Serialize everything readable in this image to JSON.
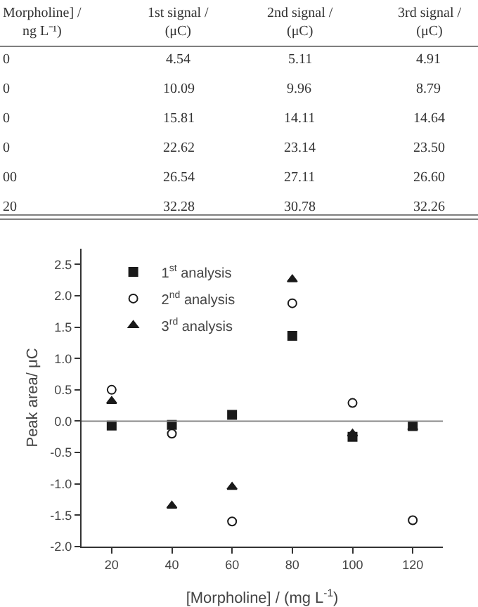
{
  "chart_data": [
    {
      "type": "other",
      "annotations": [
        "Morpholine] /\nng L⁻¹)",
        "1st signal /\n(μC)",
        "2nd signal /\n(μC)",
        "3rd signal /\n(μC)",
        "0",
        "4.54",
        "5.11",
        "4.91",
        "0",
        "10.09",
        "9.96",
        "8.79",
        "0",
        "15.81",
        "14.11",
        "14.64",
        "0",
        "22.62",
        "23.14",
        "23.50",
        "00",
        "26.54",
        "27.11",
        "26.60",
        "20",
        "32.28",
        "30.78",
        "32.26"
      ]
    },
    {
      "type": "scatter",
      "xlabel": "[Morpholine] / (mg L$^{-1}$)",
      "ylabel": "Peak area/ μC",
      "x": [
        20,
        40,
        60,
        80,
        100,
        120
      ],
      "series": [
        {
          "name": "1$^{st}$ analysis",
          "color": "#1a1a1a",
          "marker": "square",
          "values": [
            -0.07,
            -0.06,
            0.1,
            1.36,
            -0.25,
            -0.08
          ]
        },
        {
          "name": "2$^{nd}$ analysis",
          "color": "#1a1a1a",
          "marker": "circle",
          "values": [
            0.5,
            -0.2,
            -1.6,
            1.88,
            0.29,
            -1.58
          ]
        },
        {
          "name": "3$^{rd}$ analysis",
          "color": "#1a1a1a",
          "marker": "triangle",
          "values": [
            0.32,
            -1.35,
            -1.05,
            2.26,
            -0.2,
            -0.1
          ]
        }
      ],
      "xlim": [
        10,
        130
      ],
      "xticks": [
        20,
        40,
        60,
        80,
        100,
        120
      ],
      "ylim": [
        -2.0,
        2.75
      ],
      "yticks": [
        {
          "value": -2.0,
          "label": "-2.0"
        },
        {
          "value": -1.5,
          "label": "-1.5"
        },
        {
          "value": -1.0,
          "label": "-1.0"
        },
        -0.5,
        {
          "value": 0.0,
          "label": "0.0"
        },
        0.5,
        {
          "value": 1.0,
          "label": "1.0"
        },
        1.5,
        {
          "value": 2.0,
          "label": "2.0"
        },
        2.5
      ],
      "ref_lines": [
        {
          "axis": "y",
          "value": 0,
          "color": "#888888"
        }
      ],
      "legend": "top left"
    }
  ]
}
